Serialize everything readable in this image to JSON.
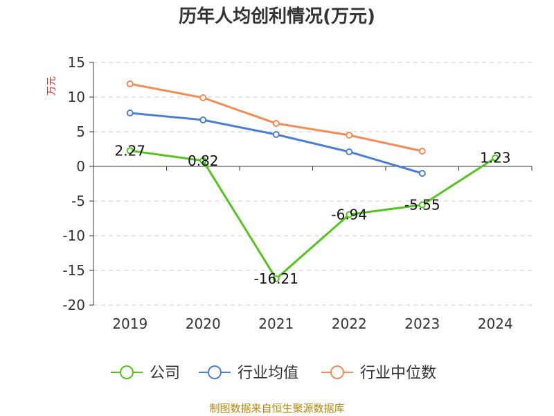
{
  "chart_data": {
    "type": "line",
    "title": "历年人均创利情况(万元)",
    "ylabel": "万元",
    "xlabel": "",
    "categories": [
      "2019",
      "2020",
      "2021",
      "2022",
      "2023",
      "2024"
    ],
    "ylim": [
      -20,
      15
    ],
    "yticks": [
      15,
      10,
      5,
      0,
      -5,
      -10,
      -15,
      -20
    ],
    "grid": true,
    "legend_position": "bottom",
    "series": [
      {
        "name": "公司",
        "color": "#52c41a",
        "values": [
          2.27,
          0.82,
          -16.21,
          -6.94,
          -5.55,
          1.23
        ],
        "data_labels": [
          "2.27",
          "0.82",
          "-16.21",
          "-6.94",
          "-5.55",
          "1.23"
        ]
      },
      {
        "name": "行业均值",
        "color": "#4a7fd6",
        "values": [
          7.7,
          6.7,
          4.6,
          2.1,
          -1.0,
          null
        ]
      },
      {
        "name": "行业中位数",
        "color": "#f28c52",
        "values": [
          11.9,
          9.9,
          6.2,
          4.5,
          2.2,
          null
        ]
      }
    ],
    "source": "制图数据来自恒生聚源数据库"
  }
}
